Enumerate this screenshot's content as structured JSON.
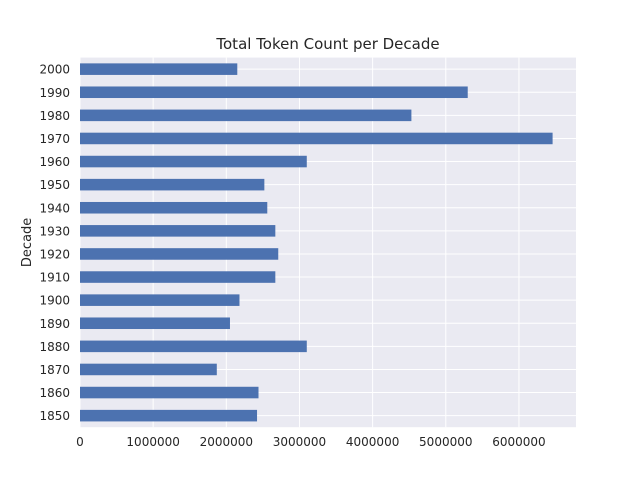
{
  "chart_data": {
    "type": "bar",
    "orientation": "horizontal",
    "title": "Total Token Count per Decade",
    "xlabel": "",
    "ylabel": "Decade",
    "categories": [
      "1850",
      "1860",
      "1870",
      "1880",
      "1890",
      "1900",
      "1910",
      "1920",
      "1930",
      "1940",
      "1950",
      "1960",
      "1970",
      "1980",
      "1990",
      "2000"
    ],
    "values": [
      2420000,
      2440000,
      1870000,
      3100000,
      2050000,
      2180000,
      2670000,
      2710000,
      2670000,
      2560000,
      2520000,
      3100000,
      6460000,
      4530000,
      5300000,
      2150000
    ],
    "xlim": [
      0,
      6780000
    ],
    "xticks": [
      0,
      1000000,
      2000000,
      3000000,
      4000000,
      5000000,
      6000000
    ],
    "xtick_labels": [
      "0",
      "1000000",
      "2000000",
      "3000000",
      "4000000",
      "5000000",
      "6000000"
    ],
    "grid": true,
    "bar_color": "#4c72b0",
    "background_color": "#eaeaf2"
  }
}
